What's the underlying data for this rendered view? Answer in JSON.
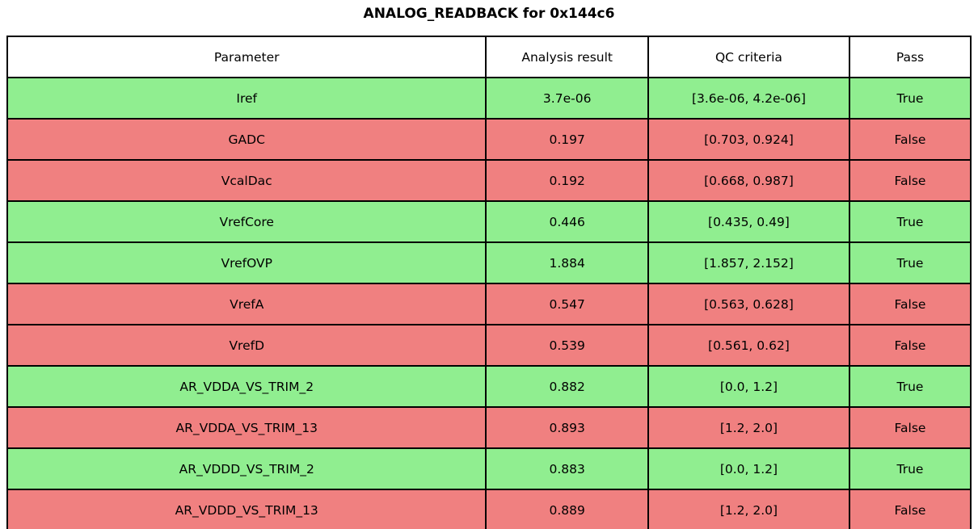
{
  "title": "ANALOG_READBACK for 0x144c6",
  "table": {
    "headers": [
      "Parameter",
      "Analysis result",
      "QC criteria",
      "Pass"
    ],
    "rows": [
      {
        "parameter": "Iref",
        "result": "3.7e-06",
        "criteria": "[3.6e-06, 4.2e-06]",
        "pass": "True"
      },
      {
        "parameter": "GADC",
        "result": "0.197",
        "criteria": "[0.703, 0.924]",
        "pass": "False"
      },
      {
        "parameter": "VcalDac",
        "result": "0.192",
        "criteria": "[0.668, 0.987]",
        "pass": "False"
      },
      {
        "parameter": "VrefCore",
        "result": "0.446",
        "criteria": "[0.435, 0.49]",
        "pass": "True"
      },
      {
        "parameter": "VrefOVP",
        "result": "1.884",
        "criteria": "[1.857, 2.152]",
        "pass": "True"
      },
      {
        "parameter": "VrefA",
        "result": "0.547",
        "criteria": "[0.563, 0.628]",
        "pass": "False"
      },
      {
        "parameter": "VrefD",
        "result": "0.539",
        "criteria": "[0.561, 0.62]",
        "pass": "False"
      },
      {
        "parameter": "AR_VDDA_VS_TRIM_2",
        "result": "0.882",
        "criteria": "[0.0, 1.2]",
        "pass": "True"
      },
      {
        "parameter": "AR_VDDA_VS_TRIM_13",
        "result": "0.893",
        "criteria": "[1.2, 2.0]",
        "pass": "False"
      },
      {
        "parameter": "AR_VDDD_VS_TRIM_2",
        "result": "0.883",
        "criteria": "[0.0, 1.2]",
        "pass": "True"
      },
      {
        "parameter": "AR_VDDD_VS_TRIM_13",
        "result": "0.889",
        "criteria": "[1.2, 2.0]",
        "pass": "False"
      }
    ]
  },
  "colors": {
    "pass_row": "#90ee90",
    "fail_row": "#f08080",
    "header_row": "#ffffff",
    "border": "#000000"
  },
  "chart_data": {
    "type": "table",
    "title": "ANALOG_READBACK for 0x144c6",
    "columns": [
      "Parameter",
      "Analysis result",
      "QC criteria",
      "Pass"
    ],
    "rows": [
      [
        "Iref",
        "3.7e-06",
        "[3.6e-06, 4.2e-06]",
        "True"
      ],
      [
        "GADC",
        "0.197",
        "[0.703, 0.924]",
        "False"
      ],
      [
        "VcalDac",
        "0.192",
        "[0.668, 0.987]",
        "False"
      ],
      [
        "VrefCore",
        "0.446",
        "[0.435, 0.49]",
        "True"
      ],
      [
        "VrefOVP",
        "1.884",
        "[1.857, 2.152]",
        "True"
      ],
      [
        "VrefA",
        "0.547",
        "[0.563, 0.628]",
        "False"
      ],
      [
        "VrefD",
        "0.539",
        "[0.561, 0.62]",
        "False"
      ],
      [
        "AR_VDDA_VS_TRIM_2",
        "0.882",
        "[0.0, 1.2]",
        "True"
      ],
      [
        "AR_VDDA_VS_TRIM_13",
        "0.893",
        "[1.2, 2.0]",
        "False"
      ],
      [
        "AR_VDDD_VS_TRIM_2",
        "0.883",
        "[0.0, 1.2]",
        "True"
      ],
      [
        "AR_VDDD_VS_TRIM_13",
        "0.889",
        "[1.2, 2.0]",
        "False"
      ]
    ],
    "row_colors": {
      "True": "#90ee90",
      "False": "#f08080"
    },
    "layout_hints": {
      "header_background": "#ffffff",
      "grid": "on",
      "border_color": "#000000"
    }
  }
}
